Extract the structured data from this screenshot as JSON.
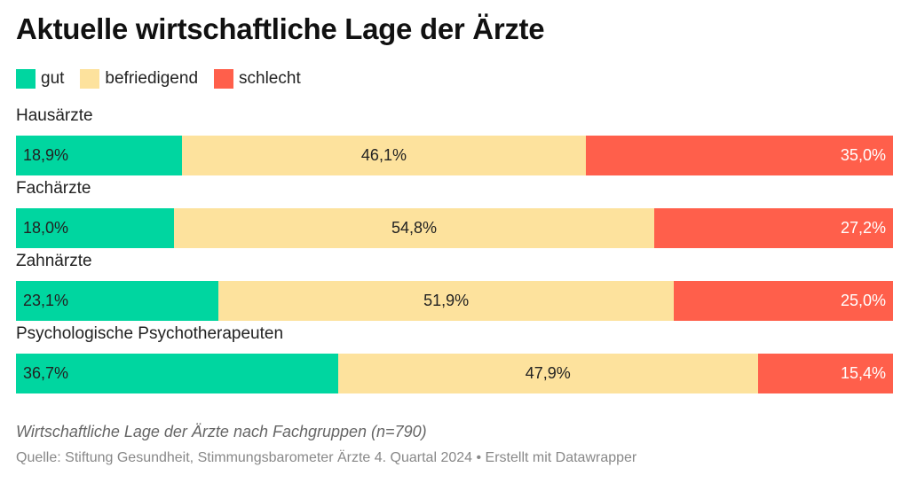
{
  "title": "Aktuelle wirtschaftliche Lage der Ärzte",
  "description": "Wirtschaftliche Lage der Ärzte nach Fachgruppen (n=790)",
  "source": "Quelle: Stiftung Gesundheit, Stimmungsbarometer Ärzte 4. Quartal 2024 • Erstellt mit Datawrapper",
  "colors": {
    "gut": "#00d6a0",
    "befriedigend": "#fde29d",
    "schlecht": "#ff5f4b"
  },
  "chart_data": {
    "type": "bar",
    "orientation": "horizontal",
    "stacked": true,
    "normalized": true,
    "legend_position": "top-left",
    "grid": false,
    "categories": [
      "Hausärzte",
      "Fachärzte",
      "Zahnärzte",
      "Psychologische Psychotherapeuten"
    ],
    "series": [
      {
        "name": "gut",
        "key": "gut",
        "values": [
          18.9,
          18.0,
          23.1,
          36.7
        ],
        "labels": [
          "18,9%",
          "18,0%",
          "23,1%",
          "36,7%"
        ]
      },
      {
        "name": "befriedigend",
        "key": "befriedigend",
        "values": [
          46.1,
          54.8,
          51.9,
          47.9
        ],
        "labels": [
          "46,1%",
          "54,8%",
          "51,9%",
          "47,9%"
        ]
      },
      {
        "name": "schlecht",
        "key": "schlecht",
        "values": [
          35.0,
          27.2,
          25.0,
          15.4
        ],
        "labels": [
          "35,0%",
          "27,2%",
          "25,0%",
          "15,4%"
        ]
      }
    ]
  }
}
